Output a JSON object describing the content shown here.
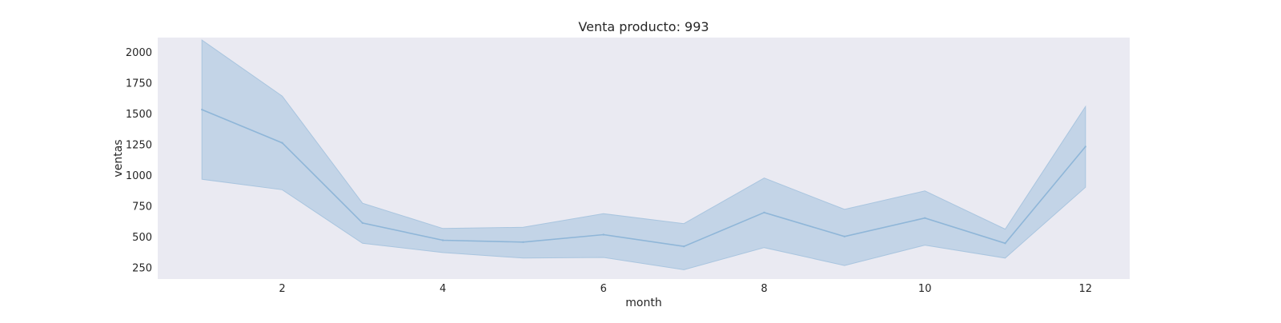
{
  "colors": {
    "plot_background": "#eaeaf2",
    "line": "#8fb6d8",
    "band": "#a9c5df",
    "text": "#262626"
  },
  "chart_data": {
    "type": "line",
    "title": "Venta producto: 993",
    "xlabel": "month",
    "ylabel": "ventas",
    "xlim": [
      0.45,
      12.55
    ],
    "ylim": [
      160,
      2120
    ],
    "x_ticks": [
      2,
      4,
      6,
      8,
      10,
      12
    ],
    "y_ticks": [
      250,
      500,
      750,
      1000,
      1250,
      1500,
      1750,
      2000
    ],
    "grid": false,
    "legend": "none",
    "x": [
      1,
      2,
      3,
      4,
      5,
      6,
      7,
      8,
      9,
      10,
      11,
      12
    ],
    "series": [
      {
        "values": [
          1535,
          1265,
          615,
          475,
          460,
          520,
          425,
          700,
          505,
          655,
          450,
          1235
        ],
        "ci_lower": [
          970,
          885,
          450,
          375,
          330,
          335,
          235,
          415,
          270,
          435,
          330,
          905
        ],
        "ci_upper": [
          2100,
          1645,
          775,
          570,
          580,
          690,
          610,
          980,
          725,
          875,
          565,
          1560
        ]
      }
    ]
  }
}
